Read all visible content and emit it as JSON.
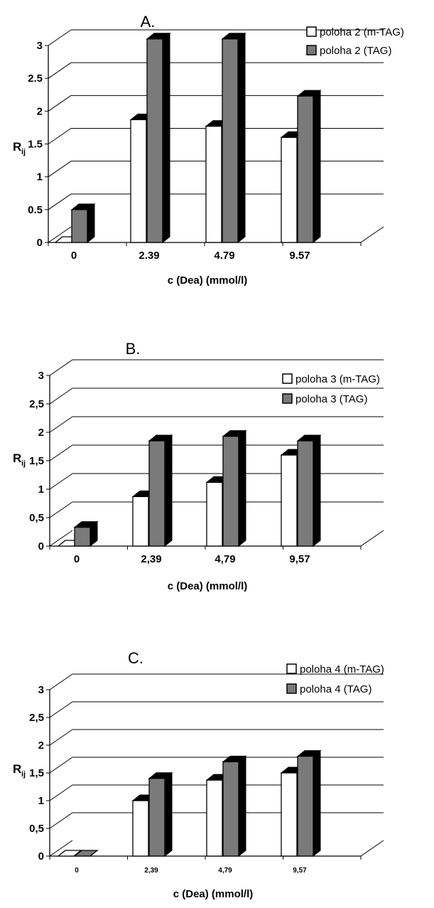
{
  "chart_data": [
    {
      "type": "bar",
      "title": "A.",
      "xlabel": "c (Dea) (mmol/l)",
      "ylabel": "R",
      "ylabel_sub": "ij",
      "categories": [
        "0",
        "2.39",
        "4.79",
        "9.57"
      ],
      "yticks": [
        "0",
        "0.5",
        "1",
        "1.5",
        "2",
        "2.5",
        "3"
      ],
      "ylim": [
        0,
        3
      ],
      "grid": true,
      "legend_position": "top-right",
      "series": [
        {
          "name": "poloha 2 (m-TAG)",
          "values": [
            0.0,
            1.87,
            1.77,
            1.6
          ]
        },
        {
          "name": "poloha 2 (TAG)",
          "values": [
            0.5,
            3.1,
            3.1,
            2.23
          ]
        }
      ]
    },
    {
      "type": "bar",
      "title": "B.",
      "xlabel": "c (Dea) (mmol/l)",
      "ylabel": "R",
      "ylabel_sub": "ij",
      "categories": [
        "0",
        "2,39",
        "4,79",
        "9,57"
      ],
      "yticks": [
        "0",
        "0,5",
        "1",
        "1,5",
        "2",
        "2,5",
        "3"
      ],
      "ylim": [
        0,
        3
      ],
      "grid": true,
      "legend_position": "top-right",
      "series": [
        {
          "name": "poloha 3 (m-TAG)",
          "values": [
            0.0,
            0.87,
            1.12,
            1.6
          ]
        },
        {
          "name": "poloha 3 (TAG)",
          "values": [
            0.33,
            1.85,
            1.93,
            1.85
          ]
        }
      ]
    },
    {
      "type": "bar",
      "title": "C.",
      "xlabel": "c (Dea) (mmol/l)",
      "ylabel": "R",
      "ylabel_sub": "ij",
      "categories": [
        "0",
        "2,39",
        "4,79",
        "9,57"
      ],
      "yticks": [
        "0",
        "0,5",
        "1",
        "1,5",
        "2",
        "2,5",
        "3"
      ],
      "ylim": [
        0,
        3
      ],
      "grid": true,
      "legend_position": "top-right",
      "series": [
        {
          "name": "poloha 4 (m-TAG)",
          "values": [
            0.0,
            1.0,
            1.37,
            1.5
          ]
        },
        {
          "name": "poloha 4 (TAG)",
          "values": [
            0.0,
            1.4,
            1.7,
            1.8
          ]
        }
      ]
    }
  ]
}
